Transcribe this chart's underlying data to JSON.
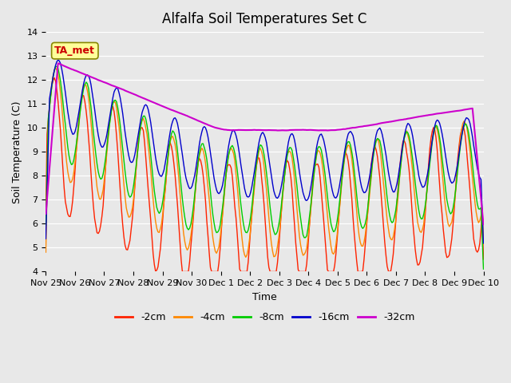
{
  "title": "Alfalfa Soil Temperatures Set C",
  "xlabel": "Time",
  "ylabel": "Soil Temperature (C)",
  "ylim": [
    4.0,
    14.0
  ],
  "yticks": [
    4.0,
    5.0,
    6.0,
    7.0,
    8.0,
    9.0,
    10.0,
    11.0,
    12.0,
    13.0,
    14.0
  ],
  "background_color": "#e8e8e8",
  "series_colors": {
    "-2cm": "#ff2200",
    "-4cm": "#ff8800",
    "-8cm": "#00cc00",
    "-16cm": "#0000cc",
    "-32cm": "#cc00cc"
  },
  "x_tick_labels": [
    "Nov 25",
    "Nov 26",
    "Nov 27",
    "Nov 28",
    "Nov 29",
    "Nov 30",
    "Dec 1",
    "Dec 2",
    "Dec 3",
    "Dec 4",
    "Dec 5",
    "Dec 6",
    "Dec 7",
    "Dec 8",
    "Dec 9",
    "Dec 10"
  ],
  "num_points": 360
}
